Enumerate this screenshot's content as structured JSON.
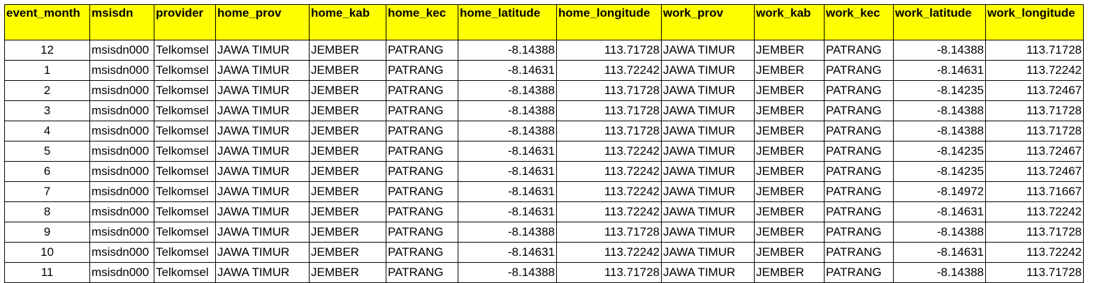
{
  "colors": {
    "header_bg": "#ffff00",
    "border": "#000000",
    "text": "#000000"
  },
  "table": {
    "headers": [
      "event_month",
      "msisdn",
      "provider",
      "home_prov",
      "home_kab",
      "home_kec",
      "home_latitude",
      "home_longitude",
      "work_prov",
      "work_kab",
      "work_kec",
      "work_latitude",
      "work_longitude"
    ],
    "rows": [
      [
        "12",
        "msisdn000",
        "Telkomsel",
        "JAWA TIMUR",
        "JEMBER",
        "PATRANG",
        "-8.14388",
        "113.71728",
        "JAWA TIMUR",
        "JEMBER",
        "PATRANG",
        "-8.14388",
        "113.71728"
      ],
      [
        "1",
        "msisdn000",
        "Telkomsel",
        "JAWA TIMUR",
        "JEMBER",
        "PATRANG",
        "-8.14631",
        "113.72242",
        "JAWA TIMUR",
        "JEMBER",
        "PATRANG",
        "-8.14631",
        "113.72242"
      ],
      [
        "2",
        "msisdn000",
        "Telkomsel",
        "JAWA TIMUR",
        "JEMBER",
        "PATRANG",
        "-8.14388",
        "113.71728",
        "JAWA TIMUR",
        "JEMBER",
        "PATRANG",
        "-8.14235",
        "113.72467"
      ],
      [
        "3",
        "msisdn000",
        "Telkomsel",
        "JAWA TIMUR",
        "JEMBER",
        "PATRANG",
        "-8.14388",
        "113.71728",
        "JAWA TIMUR",
        "JEMBER",
        "PATRANG",
        "-8.14388",
        "113.71728"
      ],
      [
        "4",
        "msisdn000",
        "Telkomsel",
        "JAWA TIMUR",
        "JEMBER",
        "PATRANG",
        "-8.14388",
        "113.71728",
        "JAWA TIMUR",
        "JEMBER",
        "PATRANG",
        "-8.14388",
        "113.71728"
      ],
      [
        "5",
        "msisdn000",
        "Telkomsel",
        "JAWA TIMUR",
        "JEMBER",
        "PATRANG",
        "-8.14631",
        "113.72242",
        "JAWA TIMUR",
        "JEMBER",
        "PATRANG",
        "-8.14235",
        "113.72467"
      ],
      [
        "6",
        "msisdn000",
        "Telkomsel",
        "JAWA TIMUR",
        "JEMBER",
        "PATRANG",
        "-8.14631",
        "113.72242",
        "JAWA TIMUR",
        "JEMBER",
        "PATRANG",
        "-8.14235",
        "113.72467"
      ],
      [
        "7",
        "msisdn000",
        "Telkomsel",
        "JAWA TIMUR",
        "JEMBER",
        "PATRANG",
        "-8.14631",
        "113.72242",
        "JAWA TIMUR",
        "JEMBER",
        "PATRANG",
        "-8.14972",
        "113.71667"
      ],
      [
        "8",
        "msisdn000",
        "Telkomsel",
        "JAWA TIMUR",
        "JEMBER",
        "PATRANG",
        "-8.14631",
        "113.72242",
        "JAWA TIMUR",
        "JEMBER",
        "PATRANG",
        "-8.14631",
        "113.72242"
      ],
      [
        "9",
        "msisdn000",
        "Telkomsel",
        "JAWA TIMUR",
        "JEMBER",
        "PATRANG",
        "-8.14388",
        "113.71728",
        "JAWA TIMUR",
        "JEMBER",
        "PATRANG",
        "-8.14388",
        "113.71728"
      ],
      [
        "10",
        "msisdn000",
        "Telkomsel",
        "JAWA TIMUR",
        "JEMBER",
        "PATRANG",
        "-8.14631",
        "113.72242",
        "JAWA TIMUR",
        "JEMBER",
        "PATRANG",
        "-8.14631",
        "113.72242"
      ],
      [
        "11",
        "msisdn000",
        "Telkomsel",
        "JAWA TIMUR",
        "JEMBER",
        "PATRANG",
        "-8.14388",
        "113.71728",
        "JAWA TIMUR",
        "JEMBER",
        "PATRANG",
        "-8.14388",
        "113.71728"
      ]
    ]
  }
}
